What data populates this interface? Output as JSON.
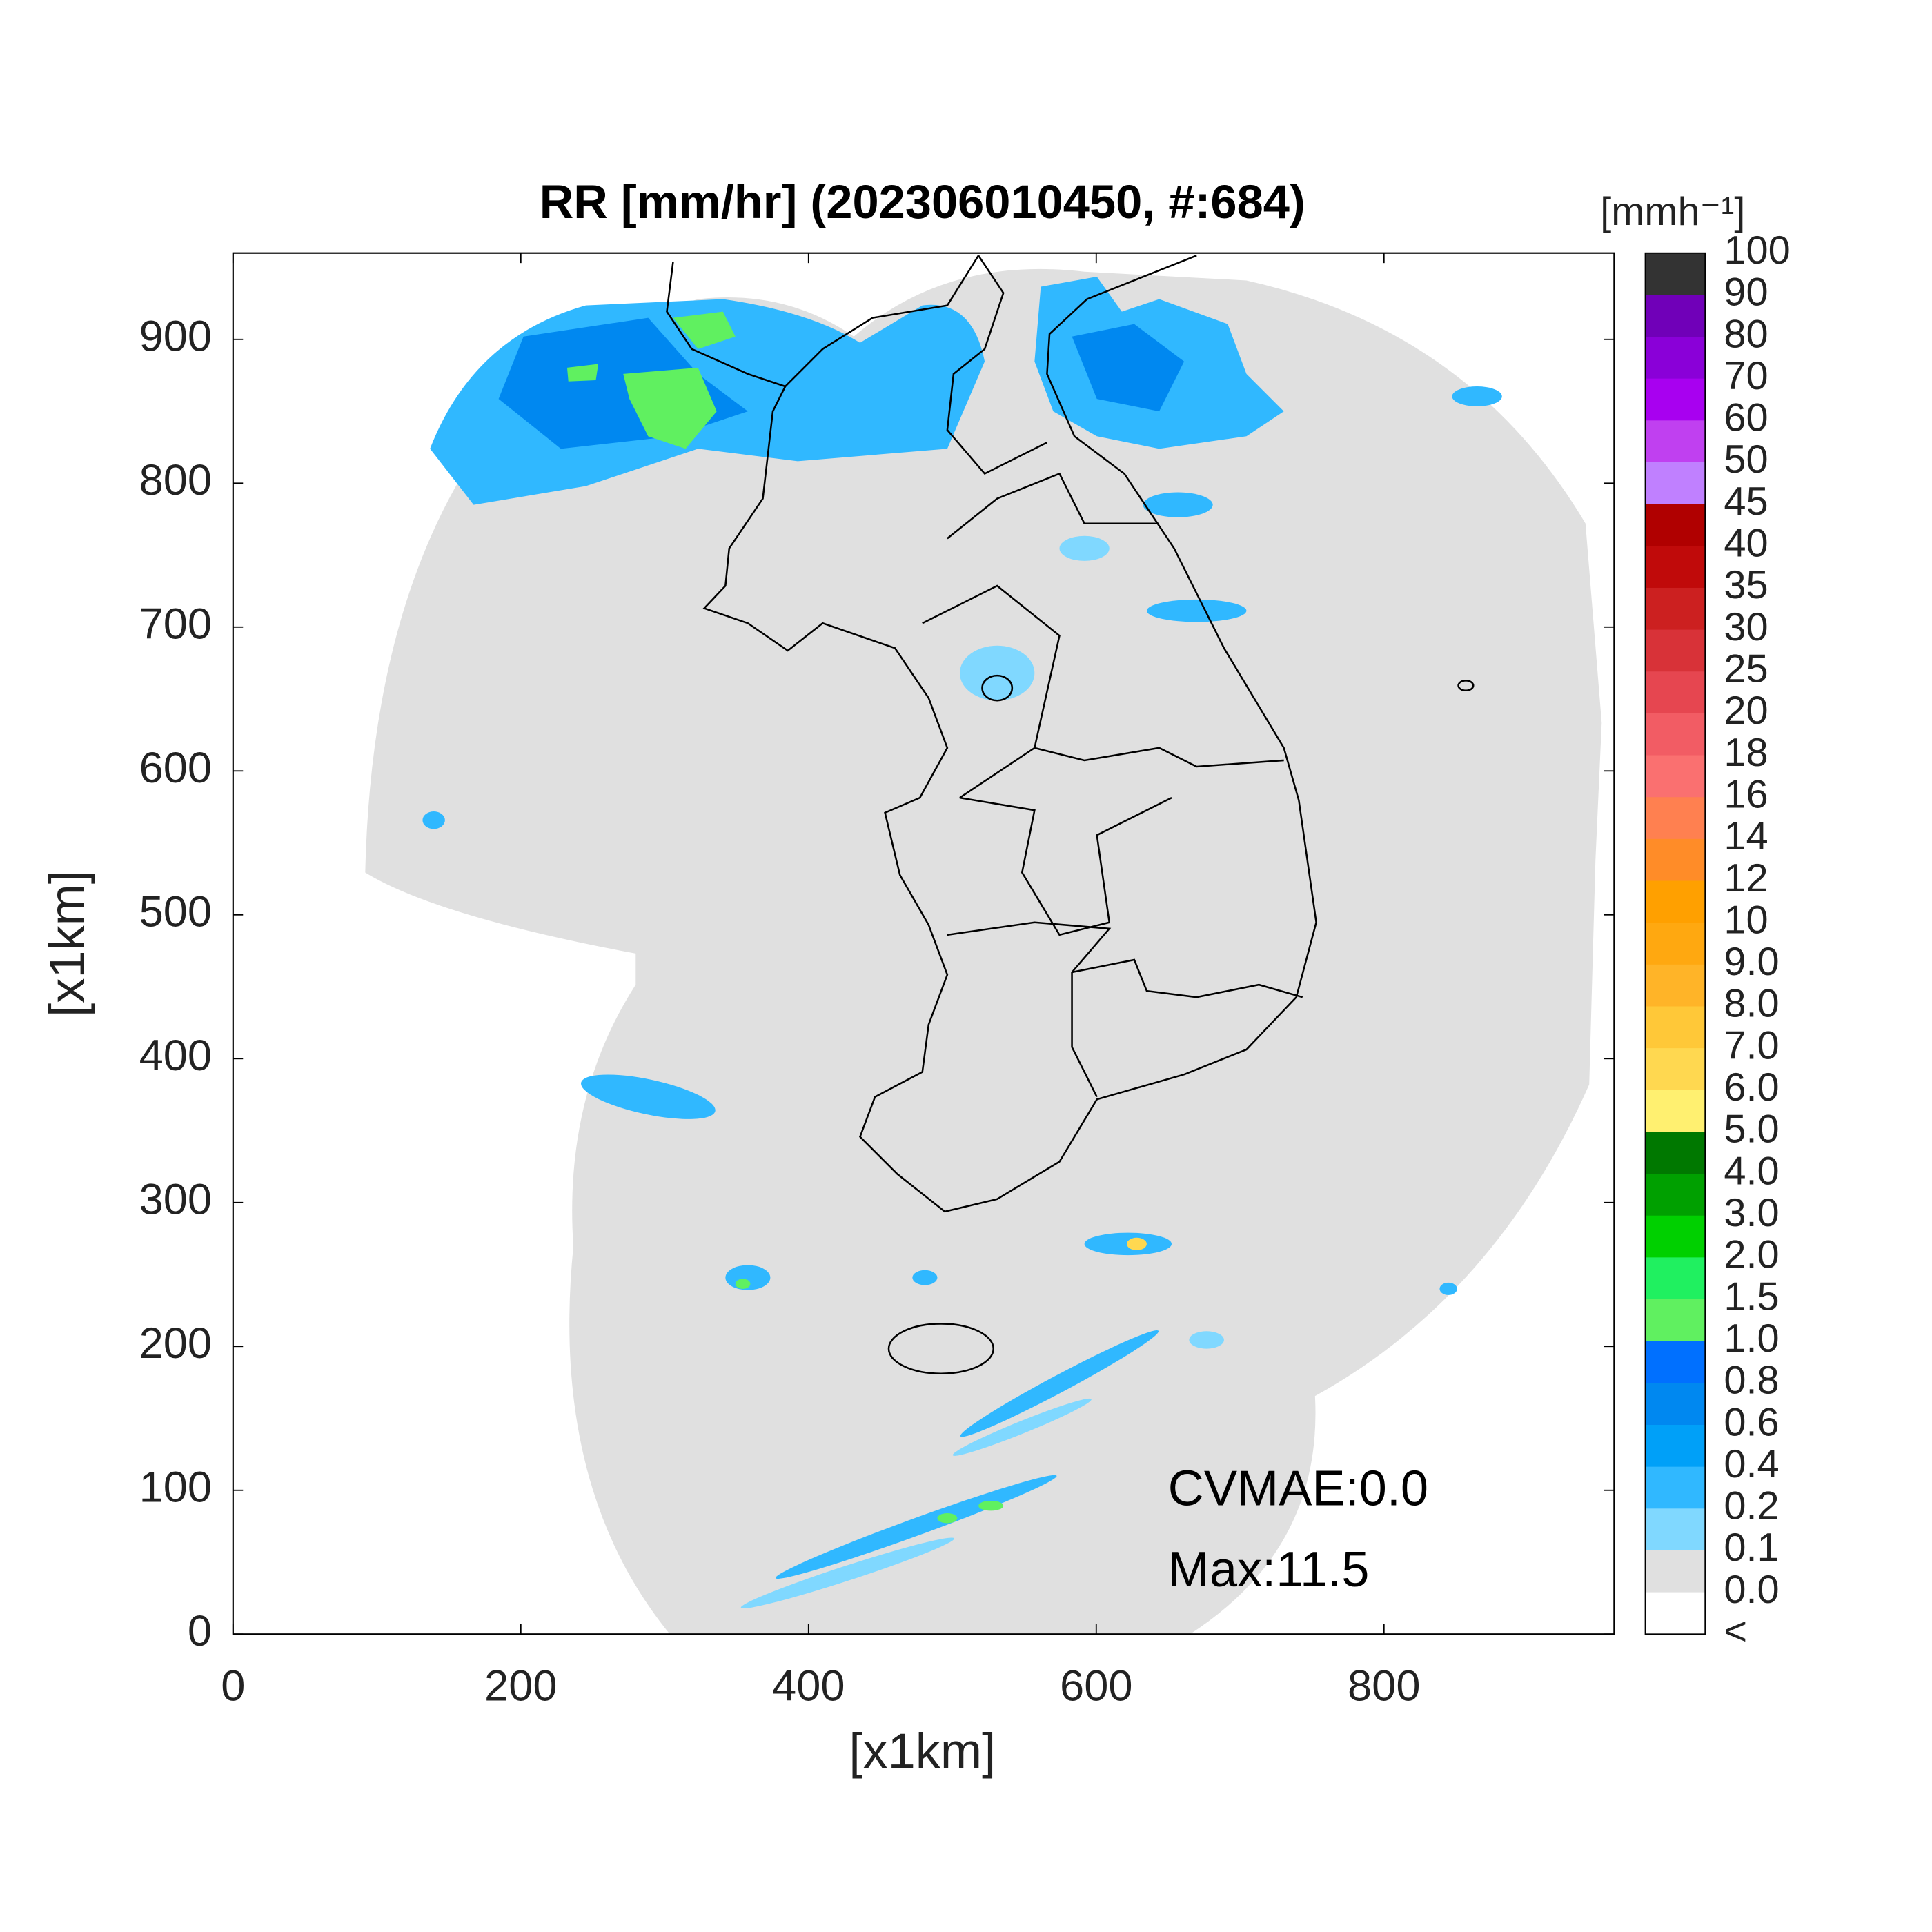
{
  "title": "RR [mm/hr] (202306010450, #:684)",
  "map": {
    "xlabel": "[x1km]",
    "ylabel": "[x1km]",
    "xlim": [
      0,
      960
    ],
    "ylim": [
      0,
      960
    ],
    "xticks": [
      0,
      200,
      400,
      600,
      800
    ],
    "yticks": [
      0,
      100,
      200,
      300,
      400,
      500,
      600,
      700,
      800,
      900
    ],
    "annotations": [
      "CVMAE:0.0",
      "Max:11.5"
    ]
  },
  "colorbar": {
    "unit_label": "[mmh⁻¹]",
    "labels": [
      "100",
      "90",
      "80",
      "70",
      "60",
      "50",
      "45",
      "40",
      "35",
      "30",
      "25",
      "20",
      "18",
      "16",
      "14",
      "12",
      "10",
      "9.0",
      "8.0",
      "7.0",
      "6.0",
      "5.0",
      "4.0",
      "3.0",
      "2.0",
      "1.5",
      "1.0",
      "0.8",
      "0.6",
      "0.4",
      "0.2",
      "0.1",
      "0.0",
      "<"
    ],
    "colors": [
      "#333333",
      "#7000b8",
      "#8a00d8",
      "#a800f0",
      "#c040f0",
      "#c080ff",
      "#b00000",
      "#c00a0a",
      "#cc2020",
      "#d83238",
      "#e64650",
      "#f25c64",
      "#fa7070",
      "#ff8050",
      "#ff8c28",
      "#ffa000",
      "#ffa810",
      "#ffb428",
      "#ffc838",
      "#ffd850",
      "#fff070",
      "#007800",
      "#00a000",
      "#00d000",
      "#20f060",
      "#60f060",
      "#0070ff",
      "#0088f0",
      "#00a0f8",
      "#30b8ff",
      "#80d8ff",
      "#e0e0e0",
      "#ffffff"
    ]
  }
}
